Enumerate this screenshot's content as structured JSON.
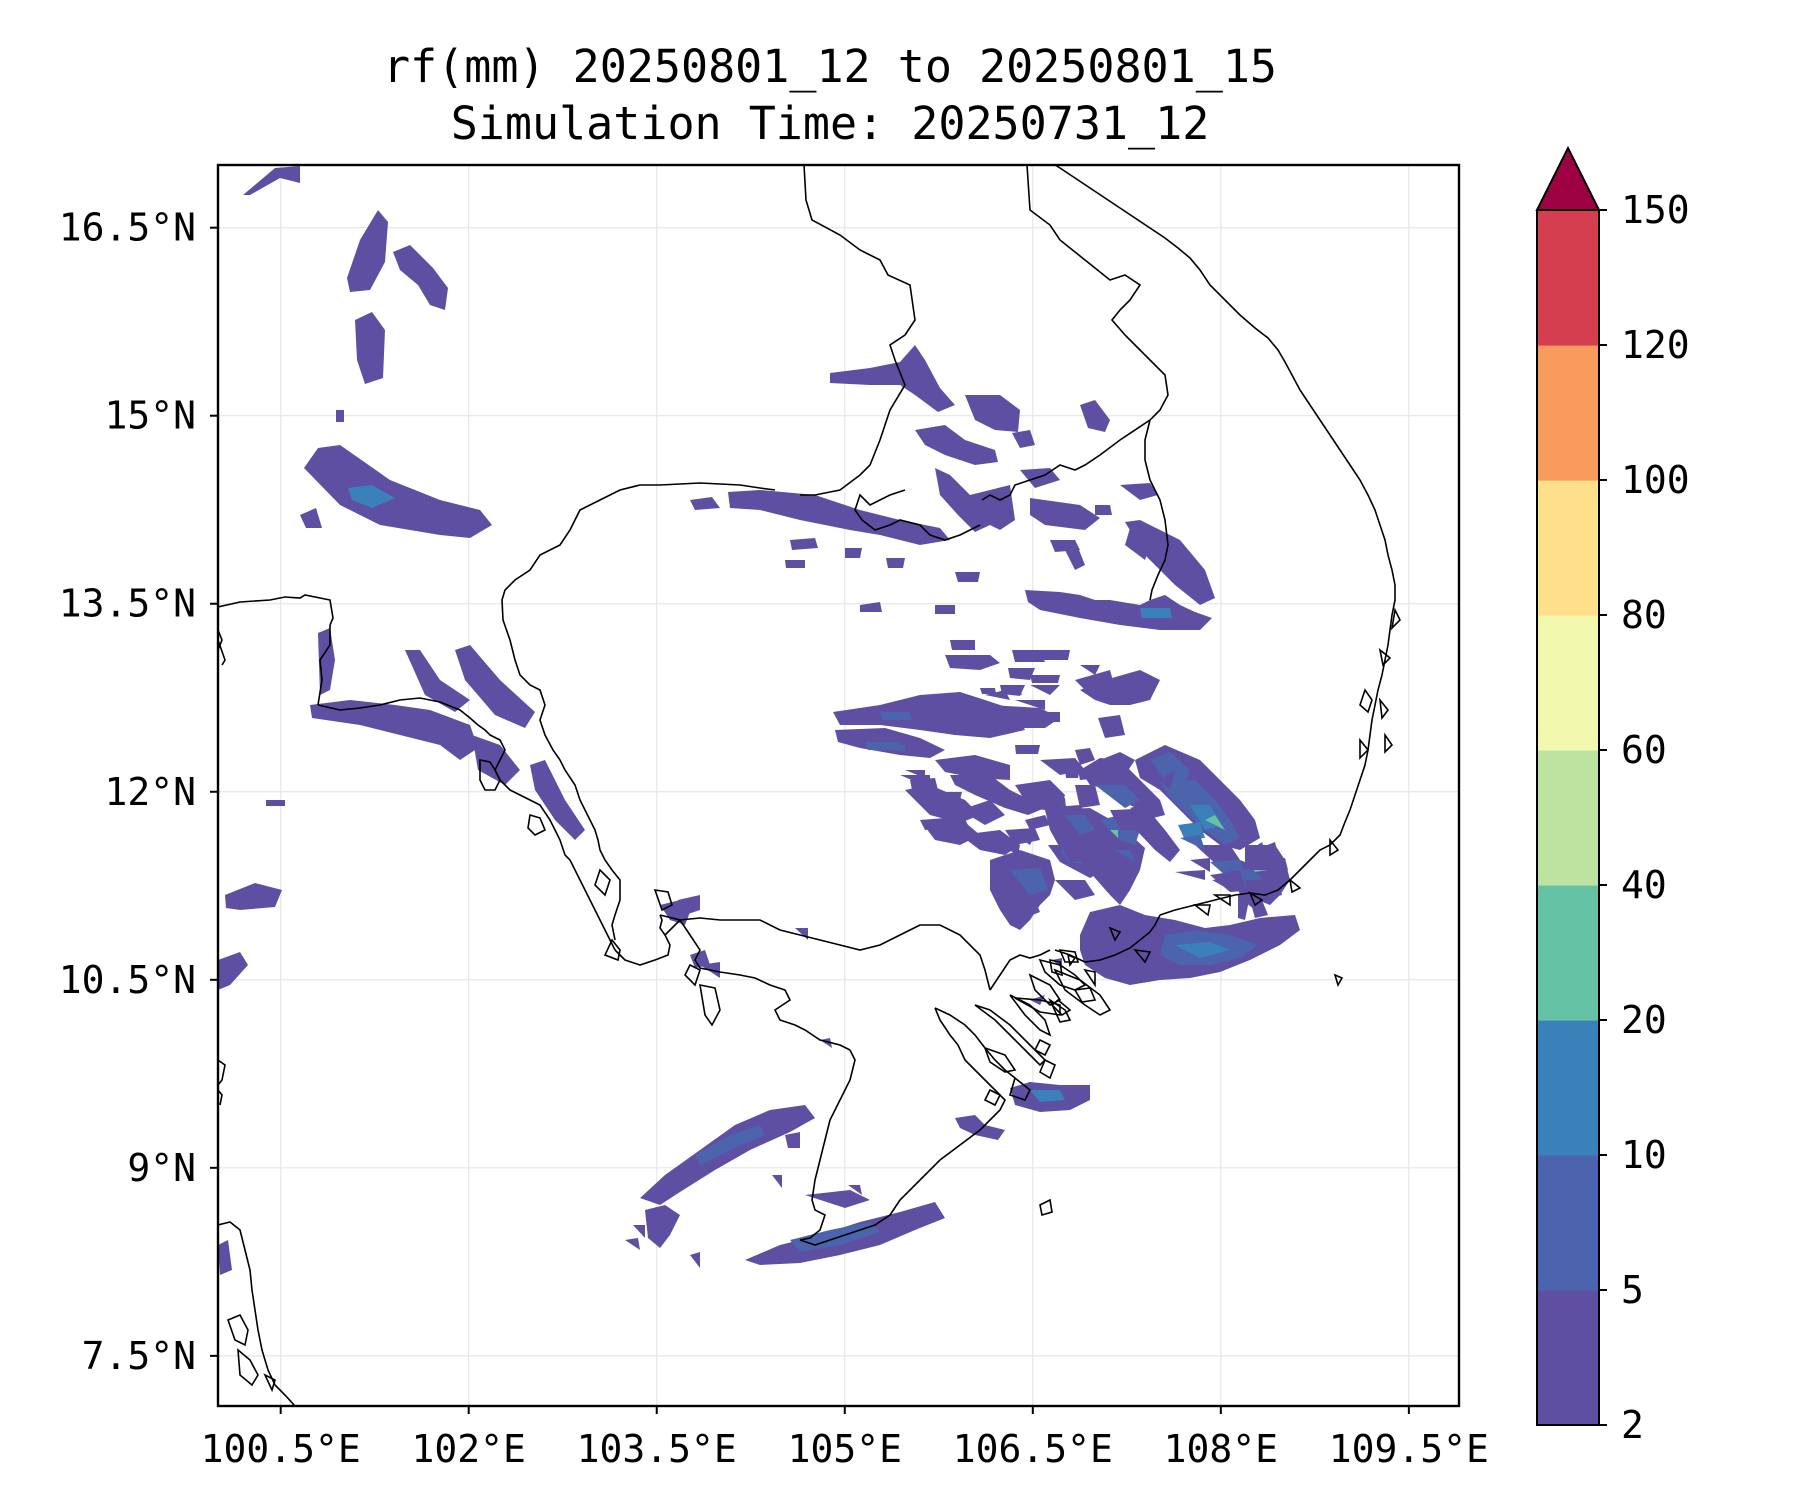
{
  "title": {
    "line1": "rf(mm) 20250801_12 to 20250801_15",
    "line2": "Simulation Time: 20250731_12"
  },
  "map": {
    "lon_range": [
      100.0,
      109.9
    ],
    "lat_range": [
      7.1,
      17.0
    ],
    "lon_ticks": [
      {
        "value": 100.5,
        "label": "100.5°E"
      },
      {
        "value": 102.0,
        "label": "102°E"
      },
      {
        "value": 103.5,
        "label": "103.5°E"
      },
      {
        "value": 105.0,
        "label": "105°E"
      },
      {
        "value": 106.5,
        "label": "106.5°E"
      },
      {
        "value": 108.0,
        "label": "108°E"
      },
      {
        "value": 109.5,
        "label": "109.5°E"
      }
    ],
    "lat_ticks": [
      {
        "value": 16.5,
        "label": "16.5°N"
      },
      {
        "value": 15.0,
        "label": "15°N"
      },
      {
        "value": 13.5,
        "label": "13.5°N"
      },
      {
        "value": 12.0,
        "label": "12°N"
      },
      {
        "value": 10.5,
        "label": "10.5°N"
      },
      {
        "value": 9.0,
        "label": "9°N"
      },
      {
        "value": 7.5,
        "label": "7.5°N"
      }
    ],
    "grid": true,
    "colors": {
      "coastline": "#000000",
      "grid": "#e6e6e6"
    }
  },
  "colorbar": {
    "extend": "max",
    "levels": [
      {
        "label": "2",
        "color": "#5e4fa2"
      },
      {
        "label": "5",
        "color": "#4c64ad"
      },
      {
        "label": "10",
        "color": "#3a80b9"
      },
      {
        "label": "20",
        "color": "#66c2a5"
      },
      {
        "label": "40",
        "color": "#bde3a1"
      },
      {
        "label": "60",
        "color": "#f2f9ae"
      },
      {
        "label": "80",
        "color": "#fee08b"
      },
      {
        "label": "100",
        "color": "#f99b5c"
      },
      {
        "label": "120",
        "color": "#d53e4f"
      },
      {
        "label": "150",
        "color": ""
      }
    ],
    "extend_color": "#9e0142"
  }
}
